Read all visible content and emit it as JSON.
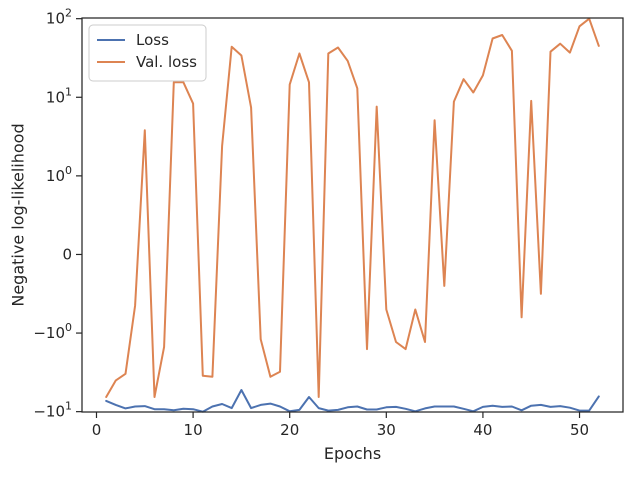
{
  "chart_data": {
    "type": "line",
    "xlabel": "Epochs",
    "ylabel": "Negative log-likelihood",
    "yscale": "symlog",
    "xlim": [
      -1.5,
      54.5
    ],
    "ylim": [
      -10.1,
      102
    ],
    "grid": false,
    "legend_position": "top-left",
    "xticks": [
      {
        "value": 0,
        "label": "0"
      },
      {
        "value": 10,
        "label": "10"
      },
      {
        "value": 20,
        "label": "20"
      },
      {
        "value": 30,
        "label": "30"
      },
      {
        "value": 40,
        "label": "40"
      },
      {
        "value": 50,
        "label": "50"
      }
    ],
    "yticks": [
      {
        "value": -10,
        "base": "−10",
        "exp": "1"
      },
      {
        "value": -1,
        "base": "−10",
        "exp": "0"
      },
      {
        "value": 0,
        "base": "0",
        "exp": ""
      },
      {
        "value": 1,
        "base": "10",
        "exp": "0"
      },
      {
        "value": 10,
        "base": "10",
        "exp": "1"
      },
      {
        "value": 100,
        "base": "10",
        "exp": "2"
      }
    ],
    "x": [
      1,
      2,
      3,
      4,
      5,
      6,
      7,
      8,
      9,
      10,
      11,
      12,
      13,
      14,
      15,
      16,
      17,
      18,
      19,
      20,
      21,
      22,
      23,
      24,
      25,
      26,
      27,
      28,
      29,
      30,
      31,
      32,
      33,
      34,
      35,
      36,
      37,
      38,
      39,
      40,
      41,
      42,
      43,
      44,
      45,
      46,
      47,
      48,
      49,
      50,
      51,
      52
    ],
    "series": [
      {
        "name": "Loss",
        "color": "#4c72b0",
        "values": [
          -7.3,
          -8.2,
          -9.1,
          -8.6,
          -8.5,
          -9.3,
          -9.3,
          -9.6,
          -9.2,
          -9.3,
          -10.0,
          -8.6,
          -8.0,
          -9.0,
          -5.3,
          -9.0,
          -8.2,
          -7.9,
          -8.6,
          -9.9,
          -9.5,
          -6.5,
          -9.0,
          -9.7,
          -9.5,
          -8.8,
          -8.6,
          -9.4,
          -9.4,
          -8.8,
          -8.7,
          -9.2,
          -9.9,
          -9.1,
          -8.6,
          -8.6,
          -8.6,
          -9.2,
          -9.9,
          -8.7,
          -8.4,
          -8.7,
          -8.6,
          -9.6,
          -8.4,
          -8.2,
          -8.7,
          -8.5,
          -8.9,
          -9.7,
          -9.7,
          -6.4
        ]
      },
      {
        "name": "Val. loss",
        "color": "#dd8452",
        "values": [
          -6.5,
          -4.0,
          -3.3,
          -0.65,
          3.8,
          -6.5,
          -1.5,
          15.5,
          15.5,
          8.3,
          -3.5,
          -3.6,
          2.4,
          44,
          34,
          7.4,
          -1.2,
          -3.6,
          -3.1,
          14.5,
          36,
          15.5,
          -6.5,
          36,
          43,
          29,
          13,
          -1.6,
          7.6,
          -0.7,
          -1.3,
          -1.6,
          -0.7,
          -1.3,
          5.1,
          -0.4,
          8.8,
          17,
          11.5,
          19,
          56,
          62,
          39,
          -0.8,
          9,
          -0.5,
          38,
          48,
          37,
          80,
          100,
          45
        ]
      }
    ]
  }
}
